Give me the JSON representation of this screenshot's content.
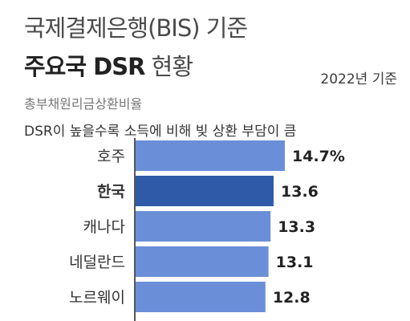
{
  "header": {
    "title_line1": "국제결제은행(BIS) 기준",
    "title_line2_bold": "주요국 DSR",
    "title_line2_light": "현황",
    "basis": "2022년 기준",
    "subtitle": "총부채원리금상환비율",
    "note": "DSR이 높을수록 소득에 비해 빚 상환 부담이 큼"
  },
  "colors": {
    "bar": "#6a8fd8",
    "bar_highlight": "#2f5aa8",
    "label": "#333333"
  },
  "chart_data": {
    "type": "bar",
    "orientation": "horizontal",
    "categories": [
      "호주",
      "한국",
      "캐나다",
      "네덜란드",
      "노르웨이"
    ],
    "values": [
      14.7,
      13.6,
      13.3,
      13.1,
      12.8
    ],
    "value_labels": [
      "14.7%",
      "13.6",
      "13.3",
      "13.1",
      "12.8"
    ],
    "highlight": "한국",
    "unit": "%"
  }
}
